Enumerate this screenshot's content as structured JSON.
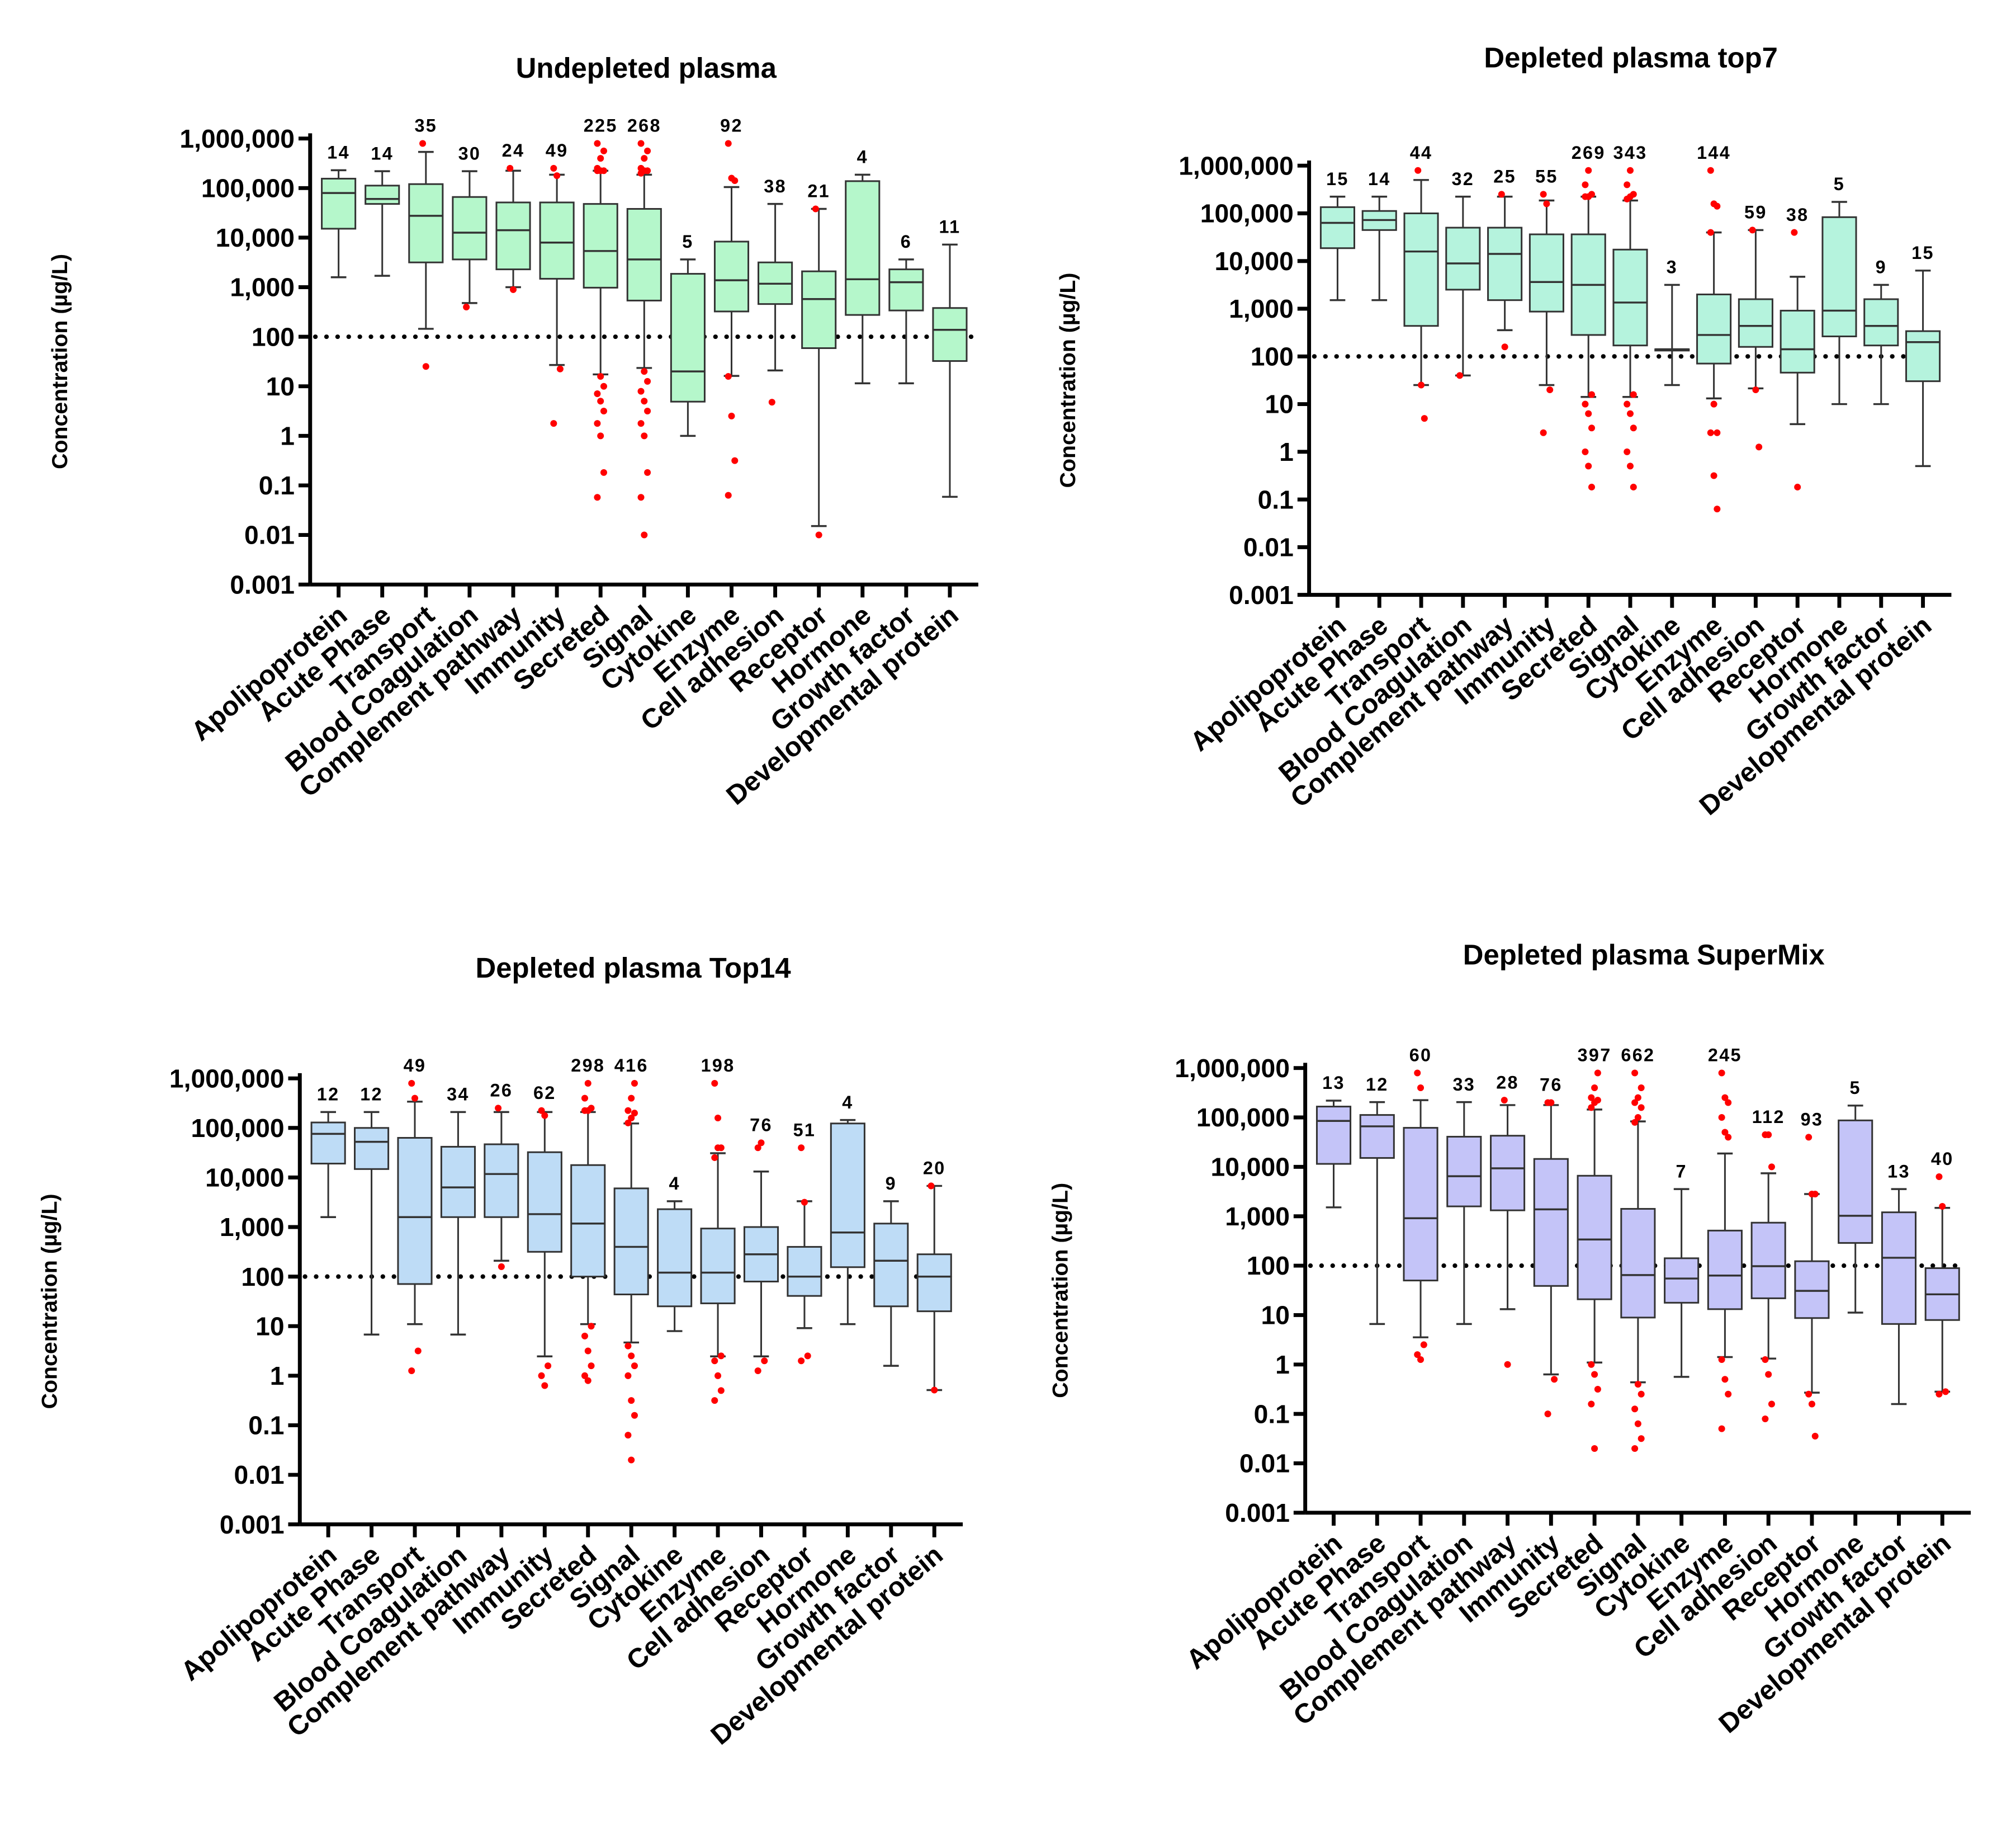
{
  "chart_data": [
    {
      "type": "box",
      "title": "Undepleted plasma",
      "ylabel": "Concentration (µg/L)",
      "yscale": "log10",
      "ylim": [
        0.001,
        1000000
      ],
      "yticks": [
        "1,000,000",
        "100,000",
        "10,000",
        "1,000",
        "100",
        "10",
        "1",
        "0.1",
        "0.01",
        "0.001"
      ],
      "reference_line": 100,
      "box_color": "#b5f7cb",
      "outlier_color": "#ff0000",
      "stats_format": "log10 of µg/L: [whisker_low, q1, median, q3, whisker_high]",
      "categories": [
        "Apolipoprotein",
        "Acute Phase",
        "Transport",
        "Blood Coagulation",
        "Complement pathway",
        "Immunity",
        "Secreted",
        "Signal",
        "Cytokine",
        "Enzyme",
        "Cell adhesion",
        "Receptor",
        "Hormone",
        "Growth factor",
        "Developmental protein"
      ],
      "counts": [
        "14",
        "14",
        "35",
        "30",
        "24",
        "49",
        "225",
        "268",
        "5",
        "92",
        "38",
        "21",
        "4",
        "6",
        "11"
      ],
      "stats": [
        [
          3.2,
          4.18,
          4.9,
          5.19,
          5.36
        ],
        [
          3.23,
          4.68,
          4.78,
          5.05,
          5.34
        ],
        [
          2.16,
          3.5,
          4.44,
          5.08,
          5.73
        ],
        [
          2.68,
          3.56,
          4.1,
          4.82,
          5.34
        ],
        [
          3.0,
          3.36,
          4.15,
          4.71,
          5.35
        ],
        [
          1.43,
          3.17,
          3.9,
          4.71,
          5.27
        ],
        [
          1.24,
          2.99,
          3.73,
          4.68,
          5.35
        ],
        [
          1.37,
          2.73,
          3.56,
          4.58,
          5.27
        ],
        [
          0.0,
          0.69,
          1.3,
          3.27,
          3.56
        ],
        [
          1.21,
          2.51,
          3.14,
          3.92,
          5.02
        ],
        [
          1.32,
          2.66,
          3.07,
          3.5,
          4.68
        ],
        [
          -1.82,
          1.77,
          2.76,
          3.32,
          4.58
        ],
        [
          1.06,
          2.44,
          3.16,
          5.14,
          5.27
        ],
        [
          1.06,
          2.53,
          3.1,
          3.36,
          3.56
        ],
        [
          -1.23,
          1.51,
          2.14,
          2.58,
          3.86
        ]
      ],
      "outliers": [
        [],
        [],
        [
          5.9,
          1.4
        ],
        [
          2.6
        ],
        [
          5.4,
          2.95
        ],
        [
          5.4,
          5.25,
          1.35,
          0.25
        ],
        [
          5.35,
          5.35,
          5.35,
          5.4,
          5.6,
          5.75,
          5.9,
          1.2,
          1.0,
          0.85,
          0.7,
          0.5,
          0.25,
          0.0,
          -0.74,
          -1.24
        ],
        [
          5.3,
          5.35,
          5.35,
          5.4,
          5.6,
          5.75,
          5.9,
          1.3,
          1.1,
          0.9,
          0.7,
          0.5,
          0.25,
          0.0,
          -0.74,
          -1.24,
          -2.0
        ],
        [],
        [
          5.9,
          5.2,
          5.15,
          1.2,
          0.4,
          -0.5,
          -1.2
        ],
        [
          0.68
        ],
        [
          4.58,
          -2.0
        ],
        [],
        [],
        []
      ]
    },
    {
      "type": "box",
      "title": "Depleted plasma top7",
      "ylabel": "Concentration (µg/L)",
      "yscale": "log10",
      "ylim": [
        0.001,
        1000000
      ],
      "yticks": [
        "1,000,000",
        "100,000",
        "10,000",
        "1,000",
        "100",
        "10",
        "1",
        "0.1",
        "0.01",
        "0.001"
      ],
      "reference_line": 100,
      "box_color": "#b5f3dd",
      "outlier_color": "#ff0000",
      "stats_format": "log10 of µg/L: [whisker_low, q1, median, q3, whisker_high]",
      "categories": [
        "Apolipoprotein",
        "Acute Phase",
        "Transport",
        "Blood Coagulation",
        "Complement pathway",
        "Immunity",
        "Secreted",
        "Signal",
        "Cytokine",
        "Enzyme",
        "Cell adhesion",
        "Receptor",
        "Hormone",
        "Growth factor",
        "Developmental protein"
      ],
      "counts": [
        "15",
        "14",
        "44",
        "32",
        "25",
        "55",
        "269",
        "343",
        "3",
        "144",
        "59",
        "38",
        "5",
        "9",
        "15"
      ],
      "stats": [
        [
          3.18,
          4.27,
          4.8,
          5.13,
          5.35
        ],
        [
          3.18,
          4.65,
          4.86,
          5.05,
          5.35
        ],
        [
          1.4,
          2.64,
          4.2,
          5.0,
          5.7
        ],
        [
          1.6,
          3.4,
          3.95,
          4.7,
          5.35
        ],
        [
          2.55,
          3.18,
          4.15,
          4.7,
          5.35
        ],
        [
          1.4,
          2.94,
          3.56,
          4.56,
          5.27
        ],
        [
          1.15,
          2.45,
          3.5,
          4.56,
          5.35
        ],
        [
          1.15,
          2.23,
          3.13,
          4.24,
          5.27
        ],
        [
          1.4,
          2.15,
          2.15,
          2.15,
          3.5
        ],
        [
          1.12,
          1.85,
          2.45,
          3.3,
          4.6
        ],
        [
          1.33,
          2.2,
          2.64,
          3.2,
          4.65
        ],
        [
          0.58,
          1.66,
          2.15,
          2.96,
          3.67
        ],
        [
          1.0,
          2.42,
          2.96,
          4.92,
          5.24
        ],
        [
          1.0,
          2.23,
          2.64,
          3.2,
          3.5
        ],
        [
          -0.3,
          1.48,
          2.3,
          2.53,
          3.8
        ]
      ],
      "outliers": [
        [],
        [],
        [
          5.9,
          1.4,
          0.7
        ],
        [
          1.6
        ],
        [
          5.4,
          2.2
        ],
        [
          5.4,
          5.2,
          1.3,
          0.4
        ],
        [
          5.35,
          5.35,
          5.4,
          5.6,
          5.9,
          1.2,
          1.0,
          0.8,
          0.5,
          0.0,
          -0.3,
          -0.74
        ],
        [
          5.3,
          5.35,
          5.4,
          5.6,
          5.9,
          1.2,
          1.0,
          0.8,
          0.5,
          0.0,
          -0.3,
          -0.74
        ],
        [],
        [
          5.9,
          5.2,
          5.15,
          4.6,
          1.0,
          0.4,
          0.4,
          -0.5,
          -1.2
        ],
        [
          4.65,
          1.3,
          0.1
        ],
        [
          4.6,
          -0.74
        ],
        [],
        [],
        []
      ]
    },
    {
      "type": "box",
      "title": "Depleted plasma Top14",
      "ylabel": "Concentration (µg/L)",
      "yscale": "log10",
      "ylim": [
        0.001,
        1000000
      ],
      "yticks": [
        "1,000,000",
        "100,000",
        "10,000",
        "1,000",
        "100",
        "10",
        "1",
        "0.1",
        "0.01",
        "0.001"
      ],
      "reference_line": 100,
      "box_color": "#bedcf6",
      "outlier_color": "#ff0000",
      "stats_format": "log10 of µg/L: [whisker_low, q1, median, q3, whisker_high]",
      "categories": [
        "Apolipoprotein",
        "Acute Phase",
        "Transport",
        "Blood Coagulation",
        "Complement pathway",
        "Immunity",
        "Secreted",
        "Signal",
        "Cytokine",
        "Enzyme",
        "Cell adhesion",
        "Receptor",
        "Hormone",
        "Growth factor",
        "Developmental protein"
      ],
      "counts": [
        "12",
        "12",
        "49",
        "34",
        "26",
        "62",
        "298",
        "416",
        "4",
        "198",
        "76",
        "51",
        "4",
        "9",
        "20"
      ],
      "stats": [
        [
          3.2,
          4.28,
          4.88,
          5.11,
          5.32
        ],
        [
          0.83,
          4.17,
          4.72,
          5.0,
          5.32
        ],
        [
          1.04,
          1.85,
          3.2,
          4.8,
          5.53
        ],
        [
          0.83,
          3.2,
          3.8,
          4.62,
          5.32
        ],
        [
          2.32,
          3.2,
          4.07,
          4.67,
          5.32
        ],
        [
          0.39,
          2.5,
          3.26,
          4.51,
          5.32
        ],
        [
          1.04,
          2.0,
          3.07,
          4.25,
          5.32
        ],
        [
          0.67,
          1.64,
          2.6,
          3.78,
          5.09
        ],
        [
          0.9,
          1.4,
          2.08,
          3.36,
          3.52
        ],
        [
          0.39,
          1.46,
          2.08,
          2.97,
          4.49
        ],
        [
          0.39,
          1.9,
          2.45,
          3.0,
          4.12
        ],
        [
          0.96,
          1.61,
          2.0,
          2.6,
          3.52
        ],
        [
          1.04,
          2.19,
          2.89,
          5.09,
          5.16
        ],
        [
          0.2,
          1.4,
          2.32,
          3.07,
          3.52
        ],
        [
          -0.29,
          1.3,
          2.0,
          2.45,
          3.83
        ]
      ],
      "outliers": [
        [],
        [],
        [
          5.9,
          5.6,
          0.5,
          0.1
        ],
        [],
        [
          5.4,
          2.2
        ],
        [
          5.35,
          5.25,
          0.2,
          0.0,
          -0.2
        ],
        [
          5.35,
          5.35,
          5.4,
          5.6,
          5.9,
          1.0,
          0.8,
          0.5,
          0.2,
          0.0,
          -0.1
        ],
        [
          5.1,
          5.2,
          5.3,
          5.35,
          5.6,
          5.9,
          0.6,
          0.4,
          0.2,
          0.0,
          -0.5,
          -0.8,
          -1.2,
          -1.7
        ],
        [],
        [
          5.9,
          5.2,
          4.6,
          4.4,
          4.6,
          0.4,
          0.3,
          0.0,
          -0.3,
          -0.5
        ],
        [
          4.6,
          4.7,
          0.3,
          0.1
        ],
        [
          4.6,
          3.5,
          0.4,
          0.3
        ],
        [],
        [],
        [
          3.83,
          -0.29
        ]
      ]
    },
    {
      "type": "box",
      "title": "Depleted plasma SuperMix",
      "ylabel": "Concentration (µg/L)",
      "yscale": "log10",
      "ylim": [
        0.001,
        1000000
      ],
      "yticks": [
        "1,000,000",
        "100,000",
        "10,000",
        "1,000",
        "100",
        "10",
        "1",
        "0.1",
        "0.01",
        "0.001"
      ],
      "reference_line": 100,
      "box_color": "#c4c4f8",
      "outlier_color": "#ff0000",
      "stats_format": "log10 of µg/L: [whisker_low, q1, median, q3, whisker_high]",
      "categories": [
        "Apolipoprotein",
        "Acute Phase",
        "Transport",
        "Blood Coagulation",
        "Complement pathway",
        "Immunity",
        "Secreted",
        "Signal",
        "Cytokine",
        "Enzyme",
        "Cell adhesion",
        "Receptor",
        "Hormone",
        "Growth factor",
        "Developmental protein"
      ],
      "counts": [
        "13",
        "12",
        "60",
        "33",
        "28",
        "76",
        "397",
        "662",
        "7",
        "245",
        "112",
        "93",
        "5",
        "13",
        "40"
      ],
      "stats": [
        [
          3.18,
          4.06,
          4.93,
          5.22,
          5.34
        ],
        [
          0.82,
          4.18,
          4.82,
          5.05,
          5.31
        ],
        [
          0.55,
          1.7,
          2.96,
          4.79,
          5.35
        ],
        [
          0.82,
          3.2,
          3.81,
          4.61,
          5.31
        ],
        [
          1.12,
          3.12,
          3.97,
          4.63,
          5.25
        ],
        [
          -0.2,
          1.59,
          3.14,
          4.16,
          5.25
        ],
        [
          0.04,
          1.32,
          2.53,
          3.82,
          5.16
        ],
        [
          -0.36,
          0.95,
          1.81,
          3.15,
          4.92
        ],
        [
          -0.25,
          1.25,
          1.74,
          2.15,
          3.55
        ],
        [
          0.15,
          1.12,
          1.8,
          2.71,
          4.27
        ],
        [
          0.12,
          1.34,
          1.99,
          2.87,
          3.87
        ],
        [
          -0.57,
          0.94,
          1.49,
          2.09,
          3.45
        ],
        [
          1.05,
          2.46,
          3.01,
          4.94,
          5.24
        ],
        [
          -0.8,
          0.82,
          2.16,
          3.08,
          3.55
        ],
        [
          -0.55,
          0.9,
          1.42,
          1.95,
          3.17
        ]
      ],
      "outliers": [
        [],
        [],
        [
          5.9,
          5.6,
          0.4,
          0.2,
          0.1
        ],
        [],
        [
          5.35,
          0.0
        ],
        [
          5.3,
          5.3,
          -0.3,
          -1.0
        ],
        [
          5.2,
          5.3,
          5.35,
          5.4,
          5.6,
          5.9,
          0.0,
          -0.2,
          -0.5,
          -0.8,
          -1.7
        ],
        [
          4.9,
          5.0,
          5.2,
          5.3,
          5.4,
          5.6,
          5.9,
          -0.4,
          -0.6,
          -0.9,
          -1.2,
          -1.5,
          -1.7
        ],
        [],
        [
          5.9,
          5.4,
          5.3,
          5.0,
          4.7,
          4.6,
          0.1,
          -0.3,
          -0.6,
          -1.3
        ],
        [
          4.65,
          4.65,
          4.0,
          0.1,
          -0.2,
          -0.8,
          -1.1
        ],
        [
          4.6,
          3.45,
          3.45,
          -0.6,
          -0.8,
          -1.45
        ],
        [],
        [],
        [
          3.8,
          3.2,
          -0.55,
          -0.6
        ]
      ]
    }
  ]
}
